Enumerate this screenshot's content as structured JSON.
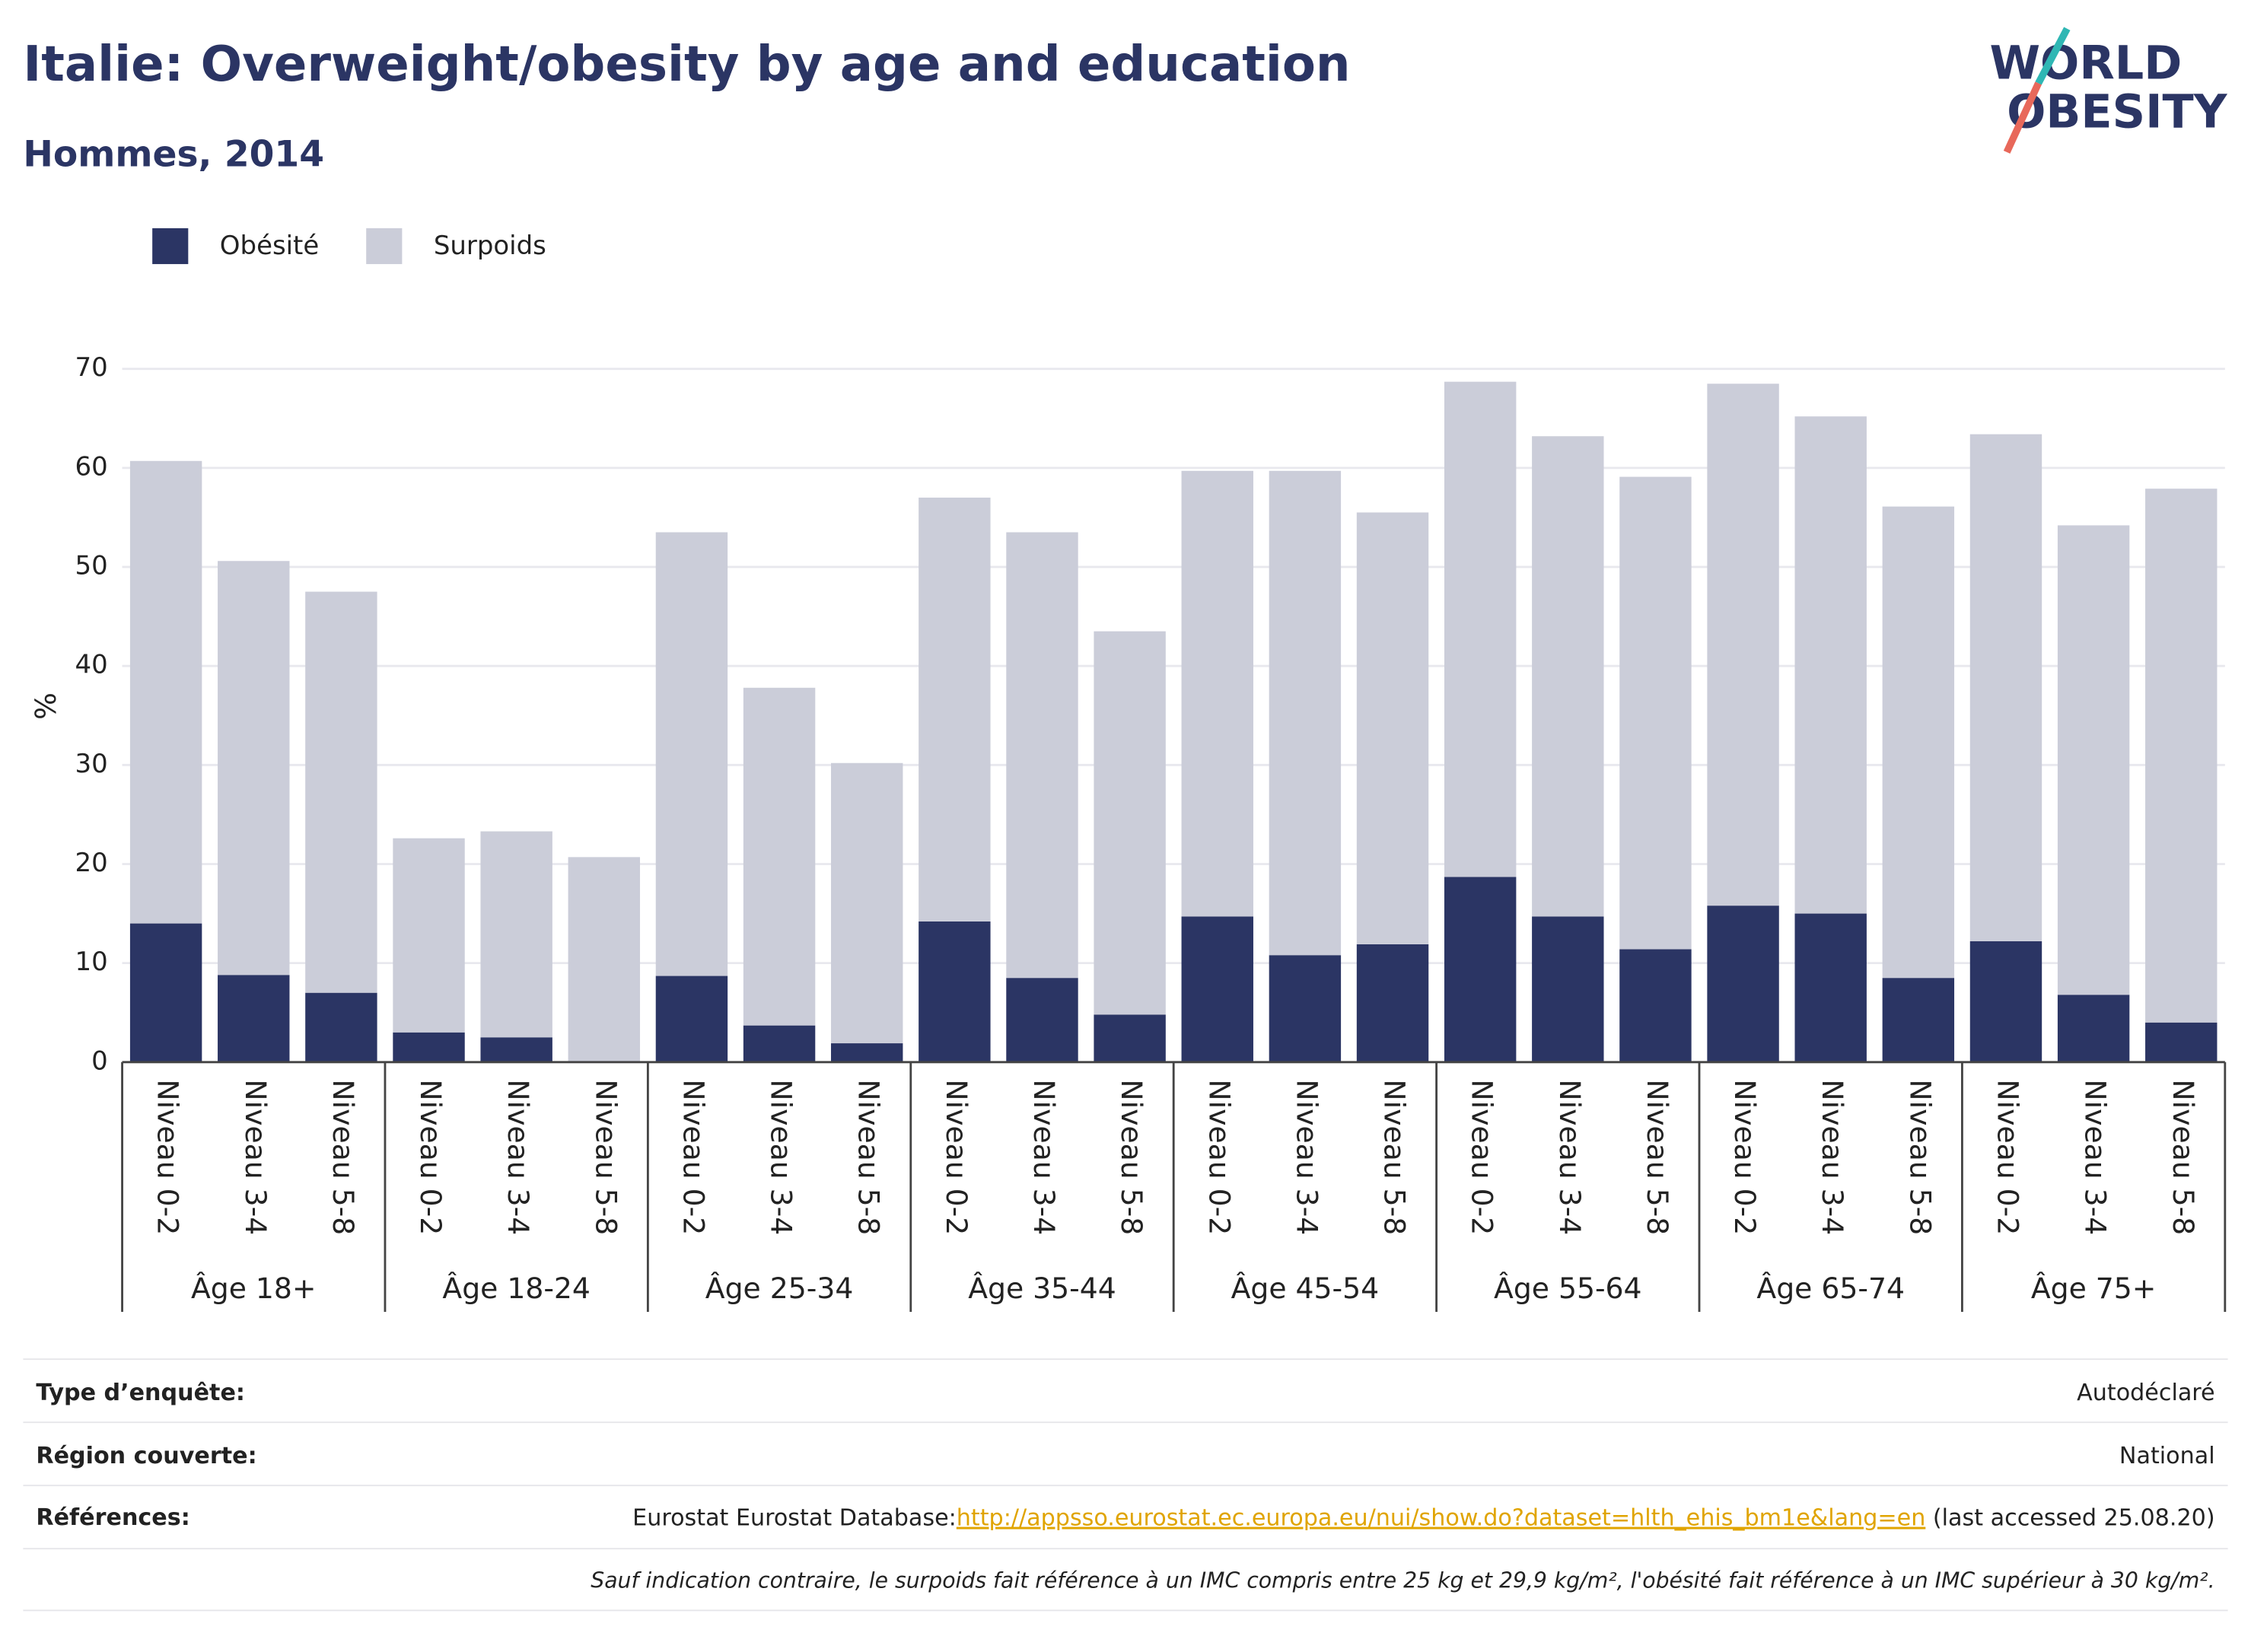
{
  "chart_data": {
    "type": "stacked_bar",
    "title": "Italie: Overweight/obesity by age and education",
    "subtitle": "Hommes, 2014",
    "y_label": "%",
    "groups": [
      "Âge 18+",
      "Âge 18-24",
      "Âge 25-34",
      "Âge 35-44",
      "Âge 45-54",
      "Âge 55-64",
      "Âge 65-74",
      "Âge 75+"
    ],
    "categories": [
      "Niveau 0-2",
      "Niveau 3-4",
      "Niveau 5-8",
      "Niveau 0-2",
      "Niveau 3-4",
      "Niveau 5-8",
      "Niveau 0-2",
      "Niveau 3-4",
      "Niveau 5-8",
      "Niveau 0-2",
      "Niveau 3-4",
      "Niveau 5-8",
      "Niveau 0-2",
      "Niveau 3-4",
      "Niveau 5-8",
      "Niveau 0-2",
      "Niveau 3-4",
      "Niveau 5-8",
      "Niveau 0-2",
      "Niveau 3-4",
      "Niveau 5-8",
      "Niveau 0-2",
      "Niveau 3-4",
      "Niveau 5-8"
    ],
    "series": [
      {
        "name": "Obésité",
        "color": "#2b3564",
        "values": [
          14.0,
          8.8,
          7.0,
          3.0,
          2.5,
          null,
          8.7,
          3.7,
          1.9,
          14.2,
          8.5,
          4.8,
          14.7,
          10.8,
          11.9,
          18.7,
          14.7,
          11.4,
          15.8,
          15.0,
          8.5,
          12.2,
          6.8,
          4.0
        ]
      },
      {
        "name": "Surpoids",
        "color": "#cbcdd9",
        "values": [
          46.7,
          41.8,
          40.5,
          19.6,
          20.8,
          20.7,
          44.8,
          34.1,
          28.3,
          42.8,
          45.0,
          38.7,
          45.0,
          48.9,
          43.6,
          50.0,
          48.5,
          47.7,
          52.7,
          50.2,
          47.6,
          51.2,
          47.4,
          53.9
        ]
      }
    ],
    "ylim": [
      0,
      70
    ],
    "yticks": [
      0,
      10,
      20,
      30,
      40,
      50,
      60,
      70
    ],
    "grid": true,
    "legend": "top-left"
  },
  "logo": [
    "WORLD",
    "OBESITY"
  ],
  "footer": {
    "rows": [
      {
        "label": "Type d’enquête:",
        "value": "Autodéclaré"
      },
      {
        "label": "Région couverte:",
        "value": "National"
      }
    ],
    "references": {
      "label": "Références:",
      "prefix": "Eurostat Eurostat Database:",
      "link": "http://appsso.eurostat.ec.europa.eu/nui/show.do?dataset=hlth_ehis_bm1e&lang=en",
      "suffix": "(last accessed 25.08.20)"
    },
    "note": "Sauf indication contraire, le surpoids fait référence à un IMC compris entre 25 kg et 29,9 kg/m², l'obésité fait référence à un IMC supérieur à 30 kg/m²."
  }
}
